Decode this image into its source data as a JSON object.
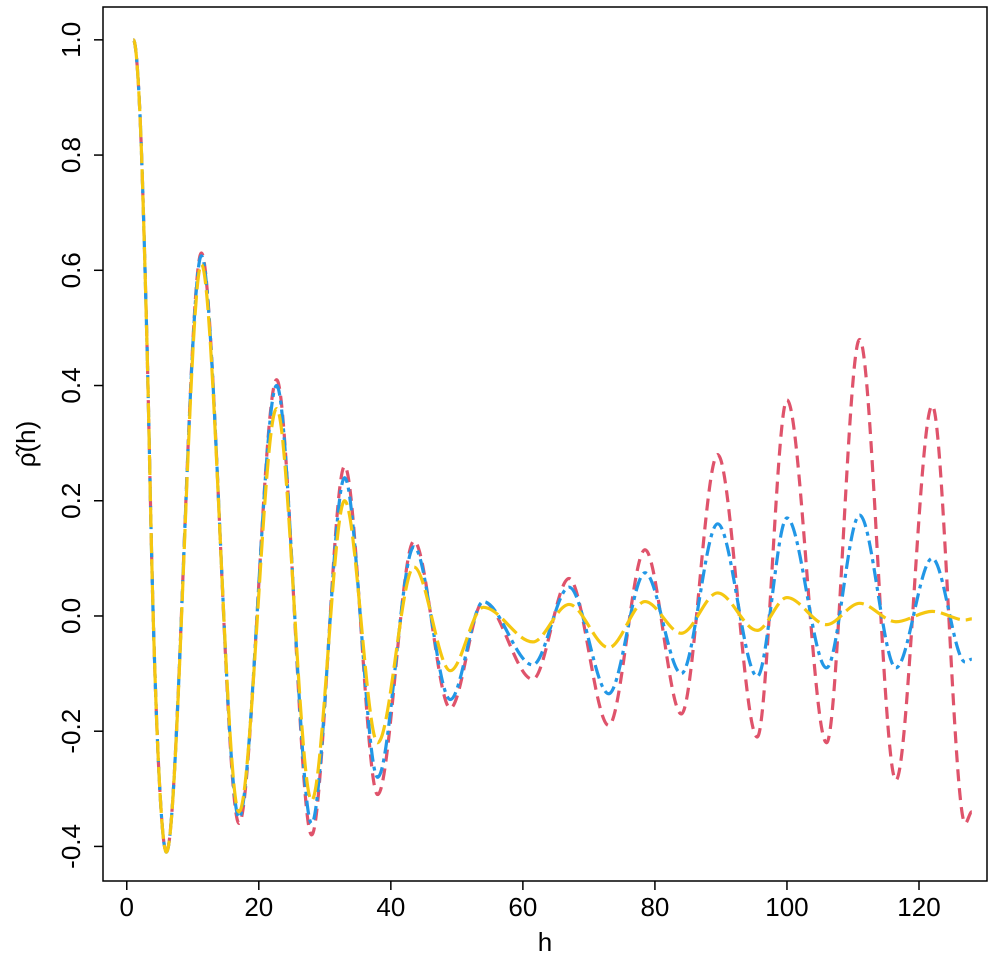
{
  "chart_data": {
    "type": "line",
    "x_label": "h",
    "y_label": "ρ̂(h)",
    "x": [
      1,
      2,
      3,
      4,
      5,
      6,
      11.3,
      17,
      22.7,
      28,
      33,
      38,
      43.5,
      49,
      54,
      61.5,
      67,
      73,
      78.5,
      84,
      89.5,
      95.5,
      100,
      106,
      111,
      116.5,
      122,
      127,
      128
    ],
    "series": [
      {
        "color": "#DF536B",
        "dash": "12,7",
        "values": [
          1,
          0.87,
          0.5,
          0.0,
          -0.3,
          -0.41,
          0.63,
          -0.36,
          0.41,
          -0.38,
          0.26,
          -0.31,
          0.13,
          -0.16,
          0.025,
          -0.11,
          0.065,
          -0.19,
          0.115,
          -0.17,
          0.28,
          -0.21,
          0.375,
          -0.22,
          0.48,
          -0.285,
          0.365,
          -0.36,
          -0.34
        ]
      },
      {
        "color": "#2297E6",
        "dash": "14,5,4,5",
        "values": [
          1,
          0.87,
          0.5,
          0.0,
          -0.3,
          -0.41,
          0.625,
          -0.35,
          0.4,
          -0.36,
          0.24,
          -0.28,
          0.12,
          -0.145,
          0.025,
          -0.085,
          0.05,
          -0.135,
          0.075,
          -0.1,
          0.16,
          -0.105,
          0.17,
          -0.09,
          0.175,
          -0.09,
          0.1,
          -0.08,
          -0.075
        ]
      },
      {
        "color": "#F5C710",
        "dash": "20,6",
        "values": [
          1,
          0.87,
          0.5,
          0.0,
          -0.3,
          -0.41,
          0.61,
          -0.34,
          0.36,
          -0.32,
          0.2,
          -0.22,
          0.085,
          -0.095,
          0.015,
          -0.045,
          0.02,
          -0.055,
          0.025,
          -0.03,
          0.04,
          -0.025,
          0.032,
          -0.015,
          0.022,
          -0.01,
          0.008,
          -0.007,
          -0.005
        ]
      }
    ],
    "xlim": [
      -3.6,
      130.3
    ],
    "ylim": [
      -0.46,
      1.057
    ],
    "xticks": [
      0,
      20,
      40,
      60,
      80,
      100,
      120
    ],
    "yticks": [
      -0.4,
      -0.2,
      {
        "value": 0,
        "label": "0.0"
      },
      0.2,
      0.4,
      0.6,
      0.8,
      {
        "value": 1,
        "label": "1.0"
      }
    ]
  }
}
